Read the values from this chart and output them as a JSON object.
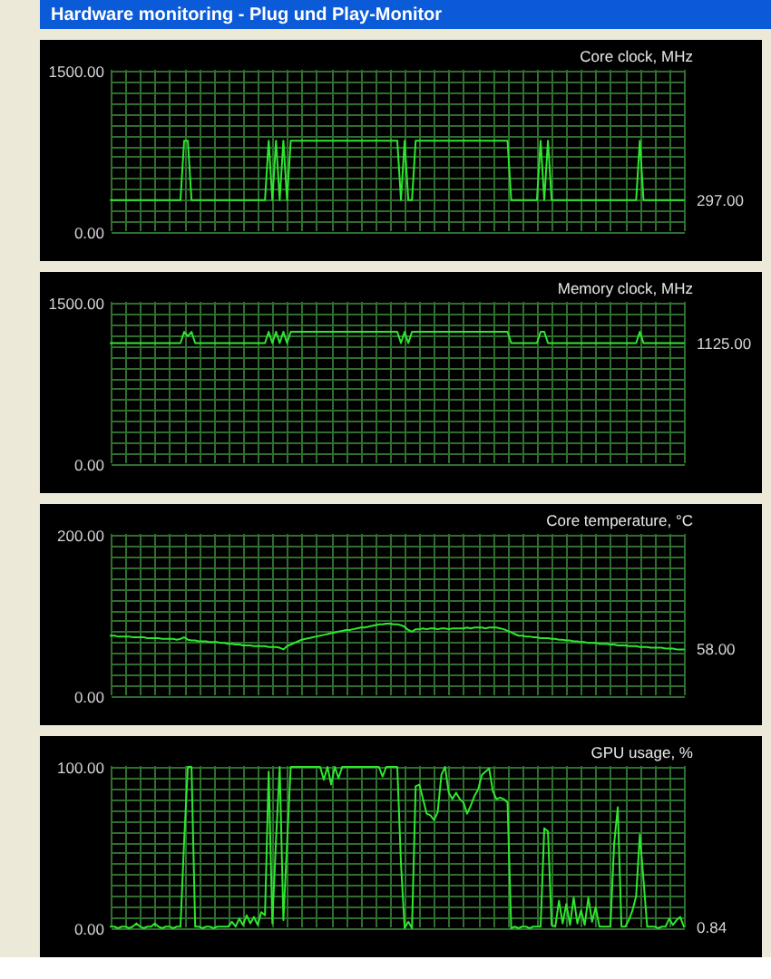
{
  "chart_data": [
    {
      "type": "line",
      "title": "Hardware monitoring - Plug und Play-Monitor",
      "ylabel": "Core clock, MHz",
      "categories": [
        null,
        null,
        null,
        null,
        null,
        null,
        null,
        null,
        null,
        null,
        null,
        null,
        null,
        null,
        null,
        null,
        null,
        null,
        null,
        null,
        null,
        null,
        null,
        null,
        null,
        null,
        null,
        null,
        null,
        null,
        null,
        null,
        null,
        null,
        null,
        null,
        null,
        null,
        null,
        null,
        null,
        null,
        null,
        null,
        null,
        null,
        null,
        null,
        null,
        null,
        null,
        null,
        null,
        null,
        null,
        null,
        null,
        null,
        null,
        null,
        null,
        null,
        null,
        null,
        null,
        null,
        null,
        null,
        null,
        null,
        null,
        null,
        null,
        null,
        null,
        null,
        null,
        null,
        null,
        null,
        null,
        null,
        null,
        null,
        null,
        null,
        null,
        null,
        null,
        null,
        null,
        null,
        null,
        null,
        null,
        null,
        null,
        null,
        null,
        null,
        null,
        null,
        null,
        null,
        null,
        null,
        null,
        null,
        null,
        null,
        null,
        null,
        null,
        null,
        null,
        null,
        null,
        null,
        null,
        null,
        null,
        null,
        null,
        null,
        null,
        null,
        null,
        null,
        null,
        null,
        null,
        null,
        null,
        null,
        null,
        null,
        null,
        null,
        null,
        null,
        null,
        null,
        null,
        null,
        null,
        null,
        null,
        null,
        null,
        null,
        null,
        null,
        null,
        null,
        null,
        null,
        null
      ],
      "series": [
        {
          "color": "#2ee62e",
          "values": [
            297,
            297,
            297,
            297,
            297,
            297,
            297,
            297,
            297,
            297,
            297,
            297,
            297,
            297,
            297,
            297,
            297,
            297,
            297,
            297,
            850,
            850,
            297,
            297,
            297,
            297,
            297,
            297,
            297,
            297,
            297,
            297,
            297,
            297,
            297,
            297,
            297,
            297,
            297,
            297,
            297,
            297,
            297,
            850,
            297,
            850,
            297,
            850,
            297,
            850,
            850,
            850,
            850,
            850,
            850,
            850,
            850,
            850,
            850,
            850,
            850,
            850,
            850,
            850,
            850,
            850,
            850,
            850,
            850,
            850,
            850,
            850,
            850,
            850,
            850,
            850,
            850,
            850,
            850,
            297,
            850,
            297,
            297,
            850,
            850,
            850,
            850,
            850,
            850,
            850,
            850,
            850,
            850,
            850,
            850,
            850,
            850,
            850,
            850,
            850,
            850,
            850,
            850,
            850,
            850,
            850,
            850,
            850,
            850,
            297,
            297,
            297,
            297,
            297,
            297,
            297,
            297,
            850,
            297,
            850,
            297,
            297,
            297,
            297,
            297,
            297,
            297,
            297,
            297,
            297,
            297,
            297,
            297,
            297,
            297,
            297,
            297,
            297,
            297,
            297,
            297,
            297,
            297,
            297,
            850,
            297,
            297,
            297,
            297,
            297,
            297,
            297,
            297,
            297,
            297,
            297,
            297
          ],
          "value_labels": [
            null,
            null,
            null,
            null,
            null,
            null,
            null,
            null,
            null,
            null,
            null,
            null,
            null,
            null,
            null,
            null,
            null,
            null,
            null,
            null,
            null,
            null,
            null,
            null,
            null,
            null,
            null,
            null,
            null,
            null,
            null,
            null,
            null,
            null,
            null,
            null,
            null,
            null,
            null,
            null,
            null,
            null,
            null,
            null,
            null,
            null,
            null,
            null,
            null,
            null,
            null,
            null,
            null,
            null,
            null,
            null,
            null,
            null,
            null,
            null,
            null,
            null,
            null,
            null,
            null,
            null,
            null,
            null,
            null,
            null,
            null,
            null,
            null,
            null,
            null,
            null,
            null,
            null,
            null,
            null,
            null,
            null,
            null,
            null,
            null,
            null,
            null,
            null,
            null,
            null,
            null,
            null,
            null,
            null,
            null,
            null,
            null,
            null,
            null,
            null,
            null,
            null,
            null,
            null,
            null,
            null,
            null,
            null,
            null,
            null,
            null,
            null,
            null,
            null,
            null,
            null,
            null,
            null,
            null,
            null,
            null,
            null,
            null,
            null,
            null,
            null,
            null,
            null,
            null,
            null,
            null,
            null,
            null,
            null,
            null,
            null,
            null,
            null,
            null,
            null,
            null,
            null,
            null,
            null,
            null,
            null,
            null,
            null,
            null,
            null,
            null,
            null,
            null,
            null,
            null,
            null,
            "297.00"
          ]
        }
      ],
      "ylim": [
        0,
        1500
      ],
      "yticks": [
        {
          "value": 0,
          "label": "0.00"
        },
        {
          "value": 100,
          "label": null
        },
        {
          "value": 200,
          "label": null
        },
        {
          "value": 300,
          "label": null
        },
        {
          "value": 400,
          "label": null
        },
        {
          "value": 500,
          "label": null
        },
        {
          "value": 600,
          "label": null
        },
        {
          "value": 700,
          "label": null
        },
        {
          "value": 800,
          "label": null
        },
        {
          "value": 900,
          "label": null
        },
        {
          "value": 1000,
          "label": null
        },
        {
          "value": 1100,
          "label": null
        },
        {
          "value": 1200,
          "label": null
        },
        {
          "value": 1300,
          "label": null
        },
        {
          "value": 1400,
          "label": null
        },
        {
          "value": 1500,
          "label": "1500.00"
        }
      ],
      "grid": true,
      "tick_labels": "y"
    },
    {
      "type": "line",
      "ylabel": "Memory clock, MHz",
      "categories": [
        null,
        null,
        null,
        null,
        null,
        null,
        null,
        null,
        null,
        null,
        null,
        null,
        null,
        null,
        null,
        null,
        null,
        null,
        null,
        null,
        null,
        null,
        null,
        null,
        null,
        null,
        null,
        null,
        null,
        null,
        null,
        null,
        null,
        null,
        null,
        null,
        null,
        null,
        null,
        null,
        null,
        null,
        null,
        null,
        null,
        null,
        null,
        null,
        null,
        null,
        null,
        null,
        null,
        null,
        null,
        null,
        null,
        null,
        null,
        null,
        null,
        null,
        null,
        null,
        null,
        null,
        null,
        null,
        null,
        null,
        null,
        null,
        null,
        null,
        null,
        null,
        null,
        null,
        null,
        null,
        null,
        null,
        null,
        null,
        null,
        null,
        null,
        null,
        null,
        null,
        null,
        null,
        null,
        null,
        null,
        null,
        null,
        null,
        null,
        null,
        null,
        null,
        null,
        null,
        null,
        null,
        null,
        null,
        null,
        null,
        null,
        null,
        null,
        null,
        null,
        null,
        null,
        null,
        null,
        null,
        null,
        null,
        null,
        null,
        null,
        null,
        null,
        null,
        null,
        null,
        null,
        null,
        null,
        null,
        null,
        null,
        null,
        null,
        null,
        null,
        null,
        null,
        null,
        null,
        null,
        null,
        null,
        null,
        null,
        null,
        null,
        null,
        null,
        null,
        null,
        null,
        null
      ],
      "series": [
        {
          "color": "#2ee62e",
          "values": [
            1125,
            1125,
            1125,
            1125,
            1125,
            1125,
            1125,
            1125,
            1125,
            1125,
            1125,
            1125,
            1125,
            1125,
            1125,
            1125,
            1125,
            1125,
            1125,
            1125,
            1230,
            1190,
            1230,
            1125,
            1125,
            1125,
            1125,
            1125,
            1125,
            1125,
            1125,
            1125,
            1125,
            1125,
            1125,
            1125,
            1125,
            1125,
            1125,
            1125,
            1125,
            1125,
            1125,
            1230,
            1125,
            1230,
            1125,
            1230,
            1125,
            1230,
            1230,
            1230,
            1230,
            1230,
            1230,
            1230,
            1230,
            1230,
            1230,
            1230,
            1230,
            1230,
            1230,
            1230,
            1230,
            1230,
            1230,
            1230,
            1230,
            1230,
            1230,
            1230,
            1230,
            1230,
            1230,
            1230,
            1230,
            1230,
            1230,
            1125,
            1230,
            1125,
            1230,
            1230,
            1230,
            1230,
            1230,
            1230,
            1230,
            1230,
            1230,
            1230,
            1230,
            1230,
            1230,
            1230,
            1230,
            1230,
            1230,
            1230,
            1230,
            1230,
            1230,
            1230,
            1230,
            1230,
            1230,
            1230,
            1230,
            1125,
            1125,
            1125,
            1125,
            1125,
            1125,
            1125,
            1125,
            1230,
            1230,
            1125,
            1125,
            1125,
            1125,
            1125,
            1125,
            1125,
            1125,
            1125,
            1125,
            1125,
            1125,
            1125,
            1125,
            1125,
            1125,
            1125,
            1125,
            1125,
            1125,
            1125,
            1125,
            1125,
            1125,
            1125,
            1230,
            1125,
            1125,
            1125,
            1125,
            1125,
            1125,
            1125,
            1125,
            1125,
            1125,
            1125,
            1125
          ],
          "value_labels": [
            null,
            null,
            null,
            null,
            null,
            null,
            null,
            null,
            null,
            null,
            null,
            null,
            null,
            null,
            null,
            null,
            null,
            null,
            null,
            null,
            null,
            null,
            null,
            null,
            null,
            null,
            null,
            null,
            null,
            null,
            null,
            null,
            null,
            null,
            null,
            null,
            null,
            null,
            null,
            null,
            null,
            null,
            null,
            null,
            null,
            null,
            null,
            null,
            null,
            null,
            null,
            null,
            null,
            null,
            null,
            null,
            null,
            null,
            null,
            null,
            null,
            null,
            null,
            null,
            null,
            null,
            null,
            null,
            null,
            null,
            null,
            null,
            null,
            null,
            null,
            null,
            null,
            null,
            null,
            null,
            null,
            null,
            null,
            null,
            null,
            null,
            null,
            null,
            null,
            null,
            null,
            null,
            null,
            null,
            null,
            null,
            null,
            null,
            null,
            null,
            null,
            null,
            null,
            null,
            null,
            null,
            null,
            null,
            null,
            null,
            null,
            null,
            null,
            null,
            null,
            null,
            null,
            null,
            null,
            null,
            null,
            null,
            null,
            null,
            null,
            null,
            null,
            null,
            null,
            null,
            null,
            null,
            null,
            null,
            null,
            null,
            null,
            null,
            null,
            null,
            null,
            null,
            null,
            null,
            null,
            null,
            null,
            null,
            null,
            null,
            null,
            null,
            null,
            null,
            null,
            null,
            "1125.00"
          ]
        }
      ],
      "ylim": [
        0,
        1500
      ],
      "yticks": [
        {
          "value": 0,
          "label": "0.00"
        },
        {
          "value": 100,
          "label": null
        },
        {
          "value": 200,
          "label": null
        },
        {
          "value": 300,
          "label": null
        },
        {
          "value": 400,
          "label": null
        },
        {
          "value": 500,
          "label": null
        },
        {
          "value": 600,
          "label": null
        },
        {
          "value": 700,
          "label": null
        },
        {
          "value": 800,
          "label": null
        },
        {
          "value": 900,
          "label": null
        },
        {
          "value": 1000,
          "label": null
        },
        {
          "value": 1100,
          "label": null
        },
        {
          "value": 1200,
          "label": null
        },
        {
          "value": 1300,
          "label": null
        },
        {
          "value": 1400,
          "label": null
        },
        {
          "value": 1500,
          "label": "1500.00"
        }
      ],
      "grid": true,
      "tick_labels": "y"
    },
    {
      "type": "line",
      "ylabel": "Core temperature, °C",
      "categories": [
        null,
        null,
        null,
        null,
        null,
        null,
        null,
        null,
        null,
        null,
        null,
        null,
        null,
        null,
        null,
        null,
        null,
        null,
        null,
        null,
        null,
        null,
        null,
        null,
        null,
        null,
        null,
        null,
        null,
        null,
        null,
        null,
        null,
        null,
        null,
        null,
        null,
        null,
        null,
        null,
        null,
        null,
        null,
        null,
        null,
        null,
        null,
        null,
        null,
        null,
        null,
        null,
        null,
        null,
        null,
        null,
        null,
        null,
        null,
        null,
        null,
        null,
        null,
        null,
        null,
        null,
        null,
        null,
        null,
        null,
        null,
        null,
        null,
        null,
        null,
        null,
        null,
        null,
        null,
        null,
        null,
        null,
        null,
        null,
        null,
        null,
        null,
        null,
        null,
        null,
        null,
        null,
        null,
        null,
        null,
        null,
        null,
        null,
        null,
        null,
        null,
        null,
        null,
        null,
        null,
        null,
        null,
        null,
        null,
        null,
        null,
        null,
        null,
        null,
        null,
        null,
        null,
        null,
        null,
        null,
        null,
        null,
        null,
        null,
        null,
        null,
        null,
        null,
        null,
        null,
        null,
        null,
        null,
        null,
        null,
        null,
        null,
        null,
        null,
        null,
        null,
        null,
        null,
        null,
        null,
        null,
        null,
        null,
        null,
        null,
        null,
        null,
        null,
        null,
        null,
        null,
        null
      ],
      "series": [
        {
          "color": "#2ee62e",
          "values": [
            75,
            75,
            74,
            74,
            74,
            74,
            73,
            73,
            73,
            73,
            72,
            72,
            72,
            72,
            71,
            71,
            71,
            71,
            70,
            71,
            73,
            70,
            69,
            69,
            68,
            68,
            68,
            67,
            67,
            67,
            66,
            66,
            65,
            65,
            64,
            64,
            63,
            63,
            63,
            62,
            62,
            62,
            62,
            61,
            61,
            61,
            60,
            58,
            62,
            64,
            66,
            68,
            70,
            71,
            72,
            73,
            74,
            75,
            76,
            77,
            78,
            79,
            80,
            81,
            82,
            82,
            83,
            84,
            85,
            85,
            86,
            87,
            88,
            89,
            89,
            90,
            90,
            89,
            89,
            88,
            86,
            82,
            80,
            83,
            83,
            84,
            83,
            84,
            84,
            83,
            84,
            84,
            83,
            84,
            84,
            84,
            84,
            85,
            84,
            85,
            85,
            85,
            84,
            85,
            85,
            85,
            84,
            83,
            81,
            79,
            77,
            75,
            75,
            74,
            74,
            73,
            73,
            72,
            72,
            72,
            71,
            71,
            70,
            70,
            69,
            69,
            68,
            68,
            67,
            67,
            66,
            66,
            66,
            65,
            65,
            65,
            64,
            64,
            63,
            63,
            63,
            62,
            62,
            62,
            61,
            61,
            61,
            60,
            60,
            60,
            60,
            59,
            59,
            59,
            58,
            58,
            58
          ],
          "value_labels": [
            null,
            null,
            null,
            null,
            null,
            null,
            null,
            null,
            null,
            null,
            null,
            null,
            null,
            null,
            null,
            null,
            null,
            null,
            null,
            null,
            null,
            null,
            null,
            null,
            null,
            null,
            null,
            null,
            null,
            null,
            null,
            null,
            null,
            null,
            null,
            null,
            null,
            null,
            null,
            null,
            null,
            null,
            null,
            null,
            null,
            null,
            null,
            null,
            null,
            null,
            null,
            null,
            null,
            null,
            null,
            null,
            null,
            null,
            null,
            null,
            null,
            null,
            null,
            null,
            null,
            null,
            null,
            null,
            null,
            null,
            null,
            null,
            null,
            null,
            null,
            null,
            null,
            null,
            null,
            null,
            null,
            null,
            null,
            null,
            null,
            null,
            null,
            null,
            null,
            null,
            null,
            null,
            null,
            null,
            null,
            null,
            null,
            null,
            null,
            null,
            null,
            null,
            null,
            null,
            null,
            null,
            null,
            null,
            null,
            null,
            null,
            null,
            null,
            null,
            null,
            null,
            null,
            null,
            null,
            null,
            null,
            null,
            null,
            null,
            null,
            null,
            null,
            null,
            null,
            null,
            null,
            null,
            null,
            null,
            null,
            null,
            null,
            null,
            null,
            null,
            null,
            null,
            null,
            null,
            null,
            null,
            null,
            null,
            null,
            null,
            null,
            null,
            null,
            null,
            null,
            null,
            "58.00"
          ]
        }
      ],
      "ylim": [
        0,
        200
      ],
      "yticks": [
        {
          "value": 0,
          "label": "0.00"
        },
        {
          "value": 13.33,
          "label": null
        },
        {
          "value": 26.67,
          "label": null
        },
        {
          "value": 40,
          "label": null
        },
        {
          "value": 53.33,
          "label": null
        },
        {
          "value": 66.67,
          "label": null
        },
        {
          "value": 80,
          "label": null
        },
        {
          "value": 93.33,
          "label": null
        },
        {
          "value": 106.67,
          "label": null
        },
        {
          "value": 120,
          "label": null
        },
        {
          "value": 133.33,
          "label": null
        },
        {
          "value": 146.67,
          "label": null
        },
        {
          "value": 160,
          "label": null
        },
        {
          "value": 173.33,
          "label": null
        },
        {
          "value": 186.67,
          "label": null
        },
        {
          "value": 200,
          "label": "200.00"
        }
      ],
      "grid": true,
      "tick_labels": "y"
    },
    {
      "type": "line",
      "ylabel": "GPU usage, %",
      "categories": [
        null,
        null,
        null,
        null,
        null,
        null,
        null,
        null,
        null,
        null,
        null,
        null,
        null,
        null,
        null,
        null,
        null,
        null,
        null,
        null,
        null,
        null,
        null,
        null,
        null,
        null,
        null,
        null,
        null,
        null,
        null,
        null,
        null,
        null,
        null,
        null,
        null,
        null,
        null,
        null,
        null,
        null,
        null,
        null,
        null,
        null,
        null,
        null,
        null,
        null,
        null,
        null,
        null,
        null,
        null,
        null,
        null,
        null,
        null,
        null,
        null,
        null,
        null,
        null,
        null,
        null,
        null,
        null,
        null,
        null,
        null,
        null,
        null,
        null,
        null,
        null,
        null,
        null,
        null,
        null,
        null,
        null,
        null,
        null,
        null,
        null,
        null,
        null,
        null,
        null,
        null,
        null,
        null,
        null,
        null,
        null,
        null,
        null,
        null,
        null,
        null,
        null,
        null,
        null,
        null,
        null,
        null,
        null,
        null,
        null,
        null,
        null,
        null,
        null,
        null,
        null,
        null,
        null,
        null,
        null,
        null,
        null,
        null,
        null,
        null,
        null,
        null,
        null,
        null,
        null,
        null,
        null,
        null,
        null,
        null,
        null,
        null,
        null,
        null,
        null,
        null,
        null,
        null,
        null,
        null,
        null,
        null,
        null,
        null,
        null,
        null,
        null,
        null,
        null,
        null,
        null,
        null
      ],
      "series": [
        {
          "color": "#2ee62e",
          "values": [
            1,
            1,
            0,
            1,
            1,
            0,
            1,
            3,
            1,
            0,
            1,
            1,
            3,
            1,
            0,
            1,
            1,
            0,
            1,
            1,
            54,
            100,
            100,
            1,
            1,
            0,
            1,
            1,
            0,
            1,
            1,
            1,
            1,
            4,
            1,
            6,
            2,
            8,
            3,
            7,
            2,
            10,
            8,
            97,
            3,
            55,
            100,
            5,
            52,
            100,
            100,
            100,
            100,
            100,
            100,
            100,
            100,
            100,
            92,
            100,
            89,
            100,
            93,
            100,
            100,
            100,
            100,
            100,
            100,
            100,
            100,
            100,
            100,
            100,
            94,
            100,
            100,
            100,
            100,
            40,
            0,
            4,
            0,
            88,
            89,
            80,
            71,
            70,
            67,
            72,
            95,
            100,
            84,
            80,
            84,
            80,
            78,
            71,
            76,
            82,
            86,
            95,
            97,
            99,
            85,
            80,
            81,
            80,
            78,
            0,
            1,
            0,
            1,
            1,
            0,
            1,
            1,
            1,
            62,
            60,
            2,
            1,
            17,
            3,
            15,
            2,
            19,
            3,
            11,
            2,
            19,
            4,
            13,
            1,
            1,
            1,
            1,
            52,
            75,
            1,
            1,
            5,
            11,
            20,
            58,
            30,
            1,
            1,
            1,
            0,
            1,
            1,
            6,
            2,
            5,
            7,
            0.84
          ],
          "value_labels": [
            null,
            null,
            null,
            null,
            null,
            null,
            null,
            null,
            null,
            null,
            null,
            null,
            null,
            null,
            null,
            null,
            null,
            null,
            null,
            null,
            null,
            null,
            null,
            null,
            null,
            null,
            null,
            null,
            null,
            null,
            null,
            null,
            null,
            null,
            null,
            null,
            null,
            null,
            null,
            null,
            null,
            null,
            null,
            null,
            null,
            null,
            null,
            null,
            null,
            null,
            null,
            null,
            null,
            null,
            null,
            null,
            null,
            null,
            null,
            null,
            null,
            null,
            null,
            null,
            null,
            null,
            null,
            null,
            null,
            null,
            null,
            null,
            null,
            null,
            null,
            null,
            null,
            null,
            null,
            null,
            null,
            null,
            null,
            null,
            null,
            null,
            null,
            null,
            null,
            null,
            null,
            null,
            null,
            null,
            null,
            null,
            null,
            null,
            null,
            null,
            null,
            null,
            null,
            null,
            null,
            null,
            null,
            null,
            null,
            null,
            null,
            null,
            null,
            null,
            null,
            null,
            null,
            null,
            null,
            null,
            null,
            null,
            null,
            null,
            null,
            null,
            null,
            null,
            null,
            null,
            null,
            null,
            null,
            null,
            null,
            null,
            null,
            null,
            null,
            null,
            null,
            null,
            null,
            null,
            null,
            null,
            null,
            null,
            null,
            null,
            null,
            null,
            null,
            null,
            null,
            null,
            "0.84"
          ]
        }
      ],
      "ylim": [
        0,
        100
      ],
      "yticks": [
        {
          "value": 0,
          "label": "0.00"
        },
        {
          "value": 6.67,
          "label": null
        },
        {
          "value": 13.33,
          "label": null
        },
        {
          "value": 20,
          "label": null
        },
        {
          "value": 26.67,
          "label": null
        },
        {
          "value": 33.33,
          "label": null
        },
        {
          "value": 40,
          "label": null
        },
        {
          "value": 46.67,
          "label": null
        },
        {
          "value": 53.33,
          "label": null
        },
        {
          "value": 60,
          "label": null
        },
        {
          "value": 66.67,
          "label": null
        },
        {
          "value": 73.33,
          "label": null
        },
        {
          "value": 80,
          "label": null
        },
        {
          "value": 86.67,
          "label": null
        },
        {
          "value": 93.33,
          "label": null
        },
        {
          "value": 100,
          "label": "100.00"
        }
      ],
      "grid": true,
      "tick_labels": "y"
    }
  ]
}
